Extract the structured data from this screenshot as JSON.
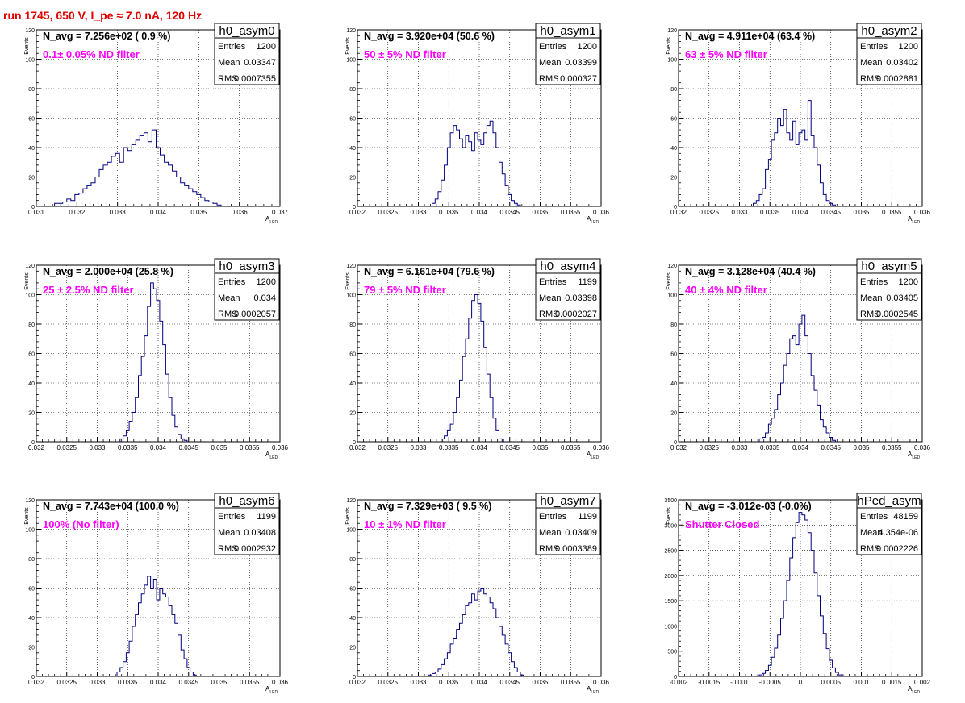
{
  "page_title": "run 1745,   650 V, I_pe ≈ 7.0 nA, 120 Hz",
  "colors": {
    "hist": "#000080",
    "nlabel": "#000000",
    "filter": "#ff00ff",
    "title": "#e00000"
  },
  "chart_data": [
    {
      "type": "histogram",
      "name": "h0_asym0",
      "nlabel": "N_avg = 7.256e+02 ( 0.9 %)",
      "filter": "0.1± 0.05% ND filter",
      "entries": "1200",
      "mean": "0.03347",
      "rms": "0.0007355",
      "xlabel": "A",
      "xlabel_sub": "LED",
      "ylabel": "Events",
      "xlim": [
        0.031,
        0.037
      ],
      "ylim": [
        0,
        120
      ],
      "xticks": [
        "0.031",
        "0.032",
        "0.033",
        "0.034",
        "0.035",
        "0.036",
        "0.037"
      ],
      "yticks": [
        "0",
        "20",
        "40",
        "60",
        "80",
        "100",
        "120"
      ],
      "centers": [
        0.0315,
        0.0316,
        0.0317,
        0.0318,
        0.0319,
        0.032,
        0.0321,
        0.0322,
        0.0323,
        0.0324,
        0.0325,
        0.0326,
        0.0327,
        0.0328,
        0.0329,
        0.033,
        0.0331,
        0.0332,
        0.0333,
        0.0334,
        0.0335,
        0.0336,
        0.0337,
        0.0338,
        0.0339,
        0.034,
        0.0341,
        0.0342,
        0.0343,
        0.0344,
        0.0345,
        0.0346,
        0.0347,
        0.0348,
        0.0349,
        0.035,
        0.0351,
        0.0352,
        0.0353,
        0.0354,
        0.0355
      ],
      "counts": [
        2,
        2,
        3,
        5,
        4,
        8,
        9,
        12,
        14,
        16,
        20,
        25,
        28,
        30,
        34,
        36,
        30,
        40,
        38,
        42,
        45,
        48,
        50,
        44,
        52,
        40,
        35,
        30,
        28,
        24,
        20,
        16,
        14,
        12,
        10,
        8,
        6,
        4,
        3,
        2,
        1
      ]
    },
    {
      "type": "histogram",
      "name": "h0_asym1",
      "nlabel": "N_avg = 3.920e+04 (50.6 %)",
      "filter": " 50 ± 5% ND filter",
      "entries": "1200",
      "mean": "0.03399",
      "rms": "0.000327",
      "xlabel": "A",
      "xlabel_sub": "LED",
      "ylabel": "Events",
      "xlim": [
        0.032,
        0.036
      ],
      "ylim": [
        0,
        120
      ],
      "xticks": [
        "0.032",
        "0.0325",
        "0.033",
        "0.0335",
        "0.034",
        "0.0345",
        "0.035",
        "0.0355",
        "0.036"
      ],
      "yticks": [
        "0",
        "20",
        "40",
        "60",
        "80",
        "100",
        "120"
      ],
      "centers": [
        0.03325,
        0.0333,
        0.03335,
        0.0334,
        0.03345,
        0.0335,
        0.03355,
        0.0336,
        0.03365,
        0.0337,
        0.03375,
        0.0338,
        0.03385,
        0.0339,
        0.03395,
        0.034,
        0.03405,
        0.0341,
        0.03415,
        0.0342,
        0.03425,
        0.0343,
        0.03435,
        0.0344,
        0.03445,
        0.0345,
        0.03455,
        0.0346,
        0.03465
      ],
      "counts": [
        2,
        5,
        10,
        18,
        28,
        40,
        50,
        55,
        52,
        46,
        40,
        48,
        44,
        38,
        50,
        45,
        42,
        50,
        55,
        58,
        50,
        40,
        30,
        22,
        14,
        8,
        4,
        2,
        1
      ]
    },
    {
      "type": "histogram",
      "name": "h0_asym2",
      "nlabel": "N_avg = 4.911e+04 (63.4 %)",
      "filter": " 63 ± 5% ND filter",
      "entries": "1200",
      "mean": "0.03402",
      "rms": "0.0002881",
      "xlabel": "A",
      "xlabel_sub": "LED",
      "ylabel": "Events",
      "xlim": [
        0.032,
        0.036
      ],
      "ylim": [
        0,
        120
      ],
      "xticks": [
        "0.032",
        "0.0325",
        "0.033",
        "0.0335",
        "0.034",
        "0.0345",
        "0.035",
        "0.0355",
        "0.036"
      ],
      "yticks": [
        "0",
        "20",
        "40",
        "60",
        "80",
        "100",
        "120"
      ],
      "centers": [
        0.03325,
        0.0333,
        0.03335,
        0.0334,
        0.03345,
        0.0335,
        0.03355,
        0.0336,
        0.03365,
        0.0337,
        0.03375,
        0.0338,
        0.03385,
        0.0339,
        0.03395,
        0.034,
        0.03405,
        0.0341,
        0.03415,
        0.0342,
        0.03425,
        0.0343,
        0.03435,
        0.0344,
        0.03445,
        0.0345,
        0.03455
      ],
      "counts": [
        2,
        4,
        8,
        12,
        25,
        32,
        45,
        50,
        60,
        55,
        66,
        50,
        45,
        58,
        42,
        50,
        52,
        45,
        72,
        48,
        40,
        28,
        16,
        8,
        4,
        2,
        1
      ]
    },
    {
      "type": "histogram",
      "name": "h0_asym3",
      "nlabel": "N_avg = 2.000e+04 (25.8 %)",
      "filter": " 25 ± 2.5% ND filter",
      "entries": "1200",
      "mean": "0.034",
      "rms": "0.0002057",
      "xlabel": "A",
      "xlabel_sub": "LED",
      "ylabel": "Events",
      "xlim": [
        0.032,
        0.036
      ],
      "ylim": [
        0,
        120
      ],
      "xticks": [
        "0.032",
        "0.0325",
        "0.033",
        "0.0335",
        "0.034",
        "0.0345",
        "0.035",
        "0.0355",
        "0.036"
      ],
      "yticks": [
        "0",
        "20",
        "40",
        "60",
        "80",
        "100",
        "120"
      ],
      "centers": [
        0.0334,
        0.03345,
        0.0335,
        0.03355,
        0.0336,
        0.03365,
        0.0337,
        0.03375,
        0.0338,
        0.03385,
        0.0339,
        0.03395,
        0.034,
        0.03405,
        0.0341,
        0.03415,
        0.0342,
        0.03425,
        0.0343,
        0.03435,
        0.0344,
        0.03445
      ],
      "counts": [
        2,
        4,
        8,
        14,
        20,
        30,
        45,
        58,
        72,
        92,
        108,
        104,
        96,
        82,
        66,
        46,
        30,
        18,
        10,
        5,
        2,
        1
      ]
    },
    {
      "type": "histogram",
      "name": "h0_asym4",
      "nlabel": "N_avg = 6.161e+04 (79.6 %)",
      "filter": " 79 ± 5% ND filter",
      "entries": "1199",
      "mean": "0.03398",
      "rms": "0.0002027",
      "xlabel": "A",
      "xlabel_sub": "LED",
      "ylabel": "Events",
      "xlim": [
        0.032,
        0.036
      ],
      "ylim": [
        0,
        120
      ],
      "xticks": [
        "0.032",
        "0.0325",
        "0.033",
        "0.0335",
        "0.034",
        "0.0345",
        "0.035",
        "0.0355",
        "0.036"
      ],
      "yticks": [
        "0",
        "20",
        "40",
        "60",
        "80",
        "100",
        "120"
      ],
      "centers": [
        0.0334,
        0.03345,
        0.0335,
        0.03355,
        0.0336,
        0.03365,
        0.0337,
        0.03375,
        0.0338,
        0.03385,
        0.0339,
        0.03395,
        0.034,
        0.03405,
        0.0341,
        0.03415,
        0.0342,
        0.03425,
        0.0343,
        0.03435
      ],
      "counts": [
        2,
        4,
        8,
        12,
        20,
        30,
        42,
        58,
        70,
        84,
        96,
        100,
        94,
        82,
        64,
        46,
        30,
        16,
        8,
        2
      ]
    },
    {
      "type": "histogram",
      "name": "h0_asym5",
      "nlabel": "N_avg = 3.128e+04 (40.4 %)",
      "filter": " 40 ± 4% ND filter",
      "entries": "1200",
      "mean": "0.03405",
      "rms": "0.0002545",
      "xlabel": "A",
      "xlabel_sub": "LED",
      "ylabel": "Events",
      "xlim": [
        0.032,
        0.036
      ],
      "ylim": [
        0,
        120
      ],
      "xticks": [
        "0.032",
        "0.0325",
        "0.033",
        "0.0335",
        "0.034",
        "0.0345",
        "0.035",
        "0.0355",
        "0.036"
      ],
      "yticks": [
        "0",
        "20",
        "40",
        "60",
        "80",
        "100",
        "120"
      ],
      "centers": [
        0.03335,
        0.0334,
        0.03345,
        0.0335,
        0.03355,
        0.0336,
        0.03365,
        0.0337,
        0.03375,
        0.0338,
        0.03385,
        0.0339,
        0.03395,
        0.034,
        0.03405,
        0.0341,
        0.03415,
        0.0342,
        0.03425,
        0.0343,
        0.03435,
        0.0344,
        0.03445,
        0.0345,
        0.03455
      ],
      "counts": [
        2,
        3,
        6,
        12,
        16,
        22,
        32,
        40,
        52,
        60,
        70,
        72,
        66,
        80,
        86,
        72,
        60,
        45,
        35,
        25,
        15,
        10,
        6,
        3,
        1
      ]
    },
    {
      "type": "histogram",
      "name": "h0_asym6",
      "nlabel": "N_avg = 7.743e+04 (100.0 %)",
      "filter": " 100% (No filter)",
      "entries": "1199",
      "mean": "0.03408",
      "rms": "0.0002932",
      "xlabel": "A",
      "xlabel_sub": "LED",
      "ylabel": "Events",
      "xlim": [
        0.032,
        0.036
      ],
      "ylim": [
        0,
        120
      ],
      "xticks": [
        "0.032",
        "0.0325",
        "0.033",
        "0.0335",
        "0.034",
        "0.0345",
        "0.035",
        "0.0355",
        "0.036"
      ],
      "yticks": [
        "0",
        "20",
        "40",
        "60",
        "80",
        "100",
        "120"
      ],
      "centers": [
        0.03335,
        0.0334,
        0.03345,
        0.0335,
        0.03355,
        0.0336,
        0.03365,
        0.0337,
        0.03375,
        0.0338,
        0.03385,
        0.0339,
        0.03395,
        0.034,
        0.03405,
        0.0341,
        0.03415,
        0.0342,
        0.03425,
        0.0343,
        0.03435,
        0.0344,
        0.03445,
        0.0345,
        0.03455,
        0.0346
      ],
      "counts": [
        3,
        6,
        10,
        16,
        24,
        34,
        42,
        50,
        56,
        62,
        68,
        60,
        66,
        52,
        60,
        56,
        54,
        48,
        42,
        36,
        28,
        18,
        12,
        6,
        3,
        1
      ]
    },
    {
      "type": "histogram",
      "name": "h0_asym7",
      "nlabel": "N_avg = 7.329e+03 ( 9.5 %)",
      "filter": " 10 ± 1% ND filter",
      "entries": "1199",
      "mean": "0.03409",
      "rms": "0.0003389",
      "xlabel": "A",
      "xlabel_sub": "LED",
      "ylabel": "Events",
      "xlim": [
        0.032,
        0.036
      ],
      "ylim": [
        0,
        120
      ],
      "xticks": [
        "0.032",
        "0.0325",
        "0.033",
        "0.0335",
        "0.034",
        "0.0345",
        "0.035",
        "0.0355",
        "0.036"
      ],
      "yticks": [
        "0",
        "20",
        "40",
        "60",
        "80",
        "100",
        "120"
      ],
      "centers": [
        0.0332,
        0.03325,
        0.0333,
        0.03335,
        0.0334,
        0.03345,
        0.0335,
        0.03355,
        0.0336,
        0.03365,
        0.0337,
        0.03375,
        0.0338,
        0.03385,
        0.0339,
        0.03395,
        0.034,
        0.03405,
        0.0341,
        0.03415,
        0.0342,
        0.03425,
        0.0343,
        0.03435,
        0.0344,
        0.03445,
        0.0345,
        0.03455,
        0.0346,
        0.03465,
        0.0347
      ],
      "counts": [
        1,
        2,
        3,
        5,
        8,
        12,
        16,
        22,
        26,
        32,
        36,
        42,
        48,
        50,
        56,
        52,
        58,
        60,
        56,
        54,
        50,
        46,
        40,
        34,
        28,
        22,
        16,
        10,
        6,
        3,
        1
      ]
    },
    {
      "type": "histogram",
      "name": "hPed_asym",
      "nlabel": "N_avg = -3.012e-03 (-0.0%)",
      "filter": " Shutter Closed",
      "entries": "48159",
      "mean": "4.354e-06",
      "rms": "0.0002226",
      "xlabel": "A",
      "xlabel_sub": "LED",
      "ylabel": "Events",
      "xlim": [
        -0.002,
        0.002
      ],
      "ylim": [
        0,
        3500
      ],
      "xticks": [
        "-0.002",
        "-0.0015",
        "-0.001",
        "-0.0005",
        "0",
        "0.0005",
        "0.001",
        "0.0015",
        "0.002"
      ],
      "yticks": [
        "0",
        "500",
        "1000",
        "1500",
        "2000",
        "2500",
        "3000",
        "3500"
      ],
      "centers": [
        -0.0007,
        -0.00065,
        -0.0006,
        -0.00055,
        -0.0005,
        -0.00045,
        -0.0004,
        -0.00035,
        -0.0003,
        -0.00025,
        -0.0002,
        -0.00015,
        -0.0001,
        -5e-05,
        0,
        5e-05,
        0.0001,
        0.00015,
        0.0002,
        0.00025,
        0.0003,
        0.00035,
        0.0004,
        0.00045,
        0.0005,
        0.00055,
        0.0006,
        0.00065,
        0.0007
      ],
      "counts": [
        10,
        30,
        60,
        120,
        220,
        380,
        560,
        820,
        1150,
        1500,
        1900,
        2350,
        2750,
        3050,
        3250,
        3200,
        3100,
        2850,
        2500,
        2050,
        1600,
        1200,
        850,
        550,
        320,
        170,
        80,
        30,
        10
      ]
    }
  ]
}
